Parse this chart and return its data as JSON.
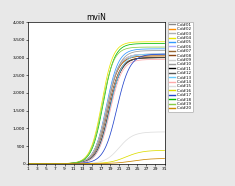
{
  "title": "mviN",
  "x_ticks": [
    1,
    3,
    5,
    7,
    9,
    11,
    13,
    15,
    17,
    19,
    21,
    23,
    25,
    27,
    29,
    31
  ],
  "xlim": [
    1,
    31
  ],
  "ylim": [
    0,
    4000
  ],
  "yticks": [
    0,
    500,
    1000,
    1500,
    2000,
    2500,
    3000,
    3500,
    4000
  ],
  "ytick_labels": [
    "0",
    "500",
    "1,000",
    "1,500",
    "2,000",
    "2,500",
    "3,000",
    "3,500",
    "4,000"
  ],
  "series": [
    {
      "name": "C.d#01",
      "color": "#888888",
      "shift": 18.2,
      "max": 3100,
      "steep": 0.75
    },
    {
      "name": "C.d#02",
      "color": "#ff8c00",
      "shift": 18.2,
      "max": 3050,
      "steep": 0.75
    },
    {
      "name": "C.d#03",
      "color": "#b0b0b0",
      "shift": 18.2,
      "max": 3100,
      "steep": 0.75
    },
    {
      "name": "C.d#04",
      "color": "#e8e800",
      "shift": 17.2,
      "max": 3450,
      "steep": 0.8
    },
    {
      "name": "C.d#05",
      "color": "#3399ff",
      "shift": 18.2,
      "max": 3250,
      "steep": 0.75
    },
    {
      "name": "C.d#06",
      "color": "#aaaaff",
      "shift": 18.2,
      "max": 3100,
      "steep": 0.75
    },
    {
      "name": "C.d#07",
      "color": "#996633",
      "shift": 18.2,
      "max": 3050,
      "steep": 0.75
    },
    {
      "name": "C.d#08",
      "color": "#8B4513",
      "shift": 18.5,
      "max": 3000,
      "steep": 0.75
    },
    {
      "name": "C.d#09",
      "color": "#cccccc",
      "shift": 18.2,
      "max": 3100,
      "steep": 0.75
    },
    {
      "name": "C.d#10",
      "color": "#999999",
      "shift": 18.5,
      "max": 3200,
      "steep": 0.75
    },
    {
      "name": "C.d#11",
      "color": "#000000",
      "shift": 18.8,
      "max": 3000,
      "steep": 0.75
    },
    {
      "name": "C.d#12",
      "color": "#555555",
      "shift": 18.8,
      "max": 3000,
      "steep": 0.75
    },
    {
      "name": "C.d#13",
      "color": "#66ccff",
      "shift": 19.0,
      "max": 3100,
      "steep": 0.75
    },
    {
      "name": "C.d#14",
      "color": "#ffaaaa",
      "shift": 19.0,
      "max": 2950,
      "steep": 0.75
    },
    {
      "name": "C.d#15",
      "color": "#dddddd",
      "shift": 21.0,
      "max": 900,
      "steep": 0.65
    },
    {
      "name": "C.d#16",
      "color": "#dddd00",
      "shift": 22.5,
      "max": 380,
      "steep": 0.55
    },
    {
      "name": "C.d#17",
      "color": "#2244cc",
      "shift": 20.5,
      "max": 3100,
      "steep": 0.7
    },
    {
      "name": "C.d#18",
      "color": "#00bb00",
      "shift": 17.5,
      "max": 3400,
      "steep": 0.8
    },
    {
      "name": "C.d#19",
      "color": "#88cc44",
      "shift": 17.3,
      "max": 3300,
      "steep": 0.8
    },
    {
      "name": "C.d#20",
      "color": "#cc8800",
      "shift": 24.0,
      "max": 150,
      "steep": 0.5
    }
  ],
  "bg_color": "#e8e8e8",
  "plot_bg": "#ffffff"
}
